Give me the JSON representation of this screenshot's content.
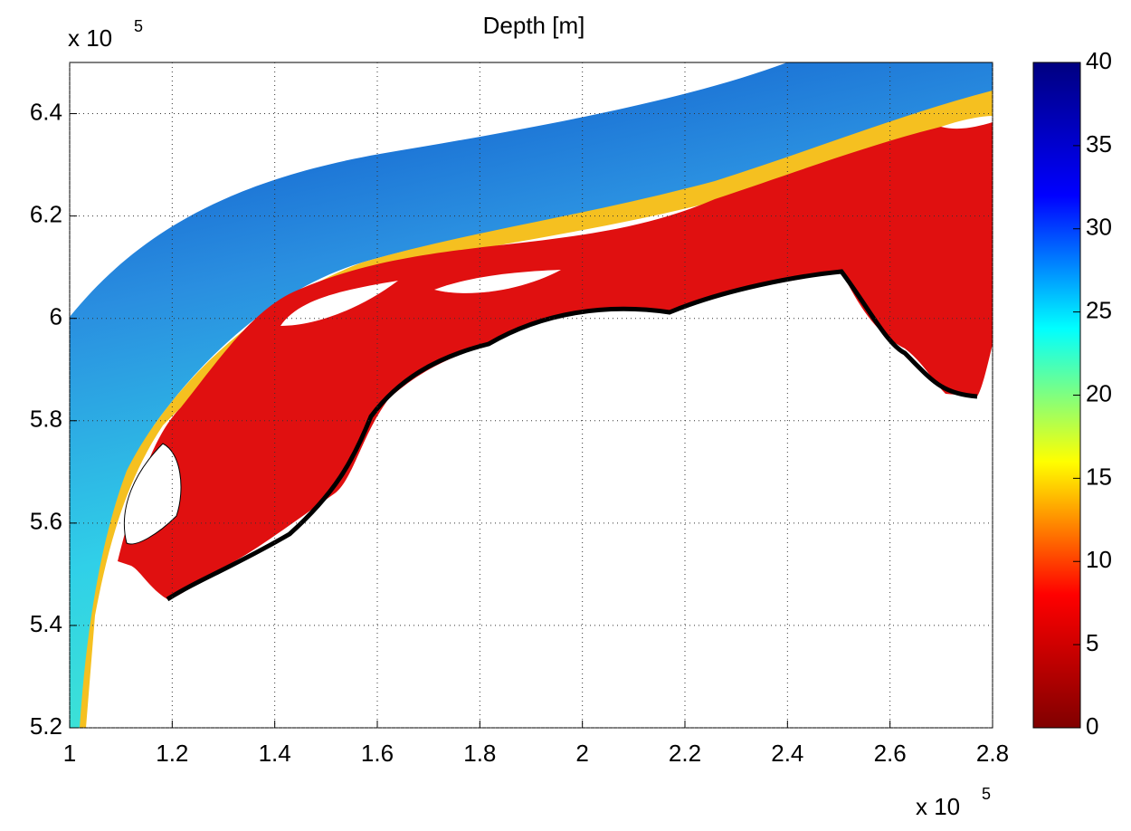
{
  "chart_data": {
    "type": "map",
    "title": "Depth [m]",
    "xlim": [
      1,
      2.8
    ],
    "xticks": [
      1,
      1.2,
      1.4,
      1.6,
      1.8,
      2,
      2.2,
      2.4,
      2.6,
      2.8
    ],
    "ylim": [
      5.2,
      6.5
    ],
    "yticks": [
      5.2,
      5.4,
      5.6,
      5.8,
      6,
      6.2,
      6.4
    ],
    "x_scale_label": {
      "base": "x 10",
      "power": 5
    },
    "y_scale_label": {
      "base": "x 10",
      "power": 5
    },
    "grid": true,
    "colorbar": {
      "lim": [
        0,
        40
      ],
      "ticks": [
        0,
        5,
        10,
        15,
        20,
        25,
        30,
        35,
        40
      ],
      "colormap": [
        "#800000",
        "#ff0000",
        "#ffff00",
        "#00ffff",
        "#0000ff",
        "#000080"
      ]
    }
  }
}
